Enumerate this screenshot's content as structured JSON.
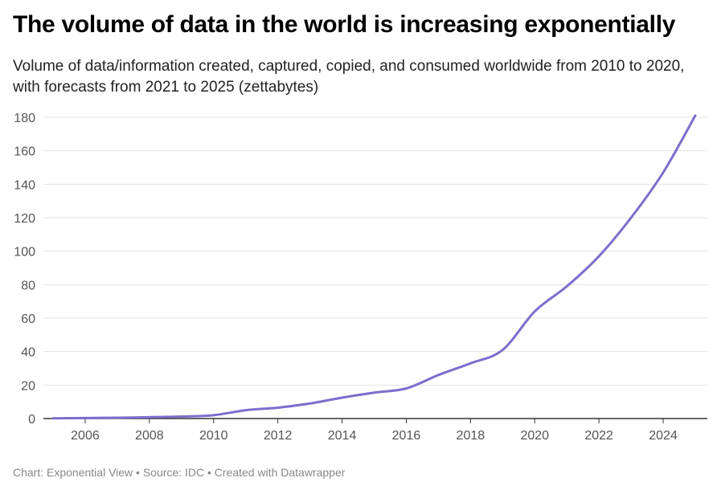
{
  "header": {
    "title": "The volume of data in the world is increasing exponentially",
    "subtitle": "Volume of data/information created, captured, copied, and consumed worldwide from 2010 to 2020, with forecasts from 2021 to 2025 (zettabytes)"
  },
  "footer": {
    "credit": "Chart: Exponential View • Source: IDC • Created with Datawrapper"
  },
  "colors": {
    "line": "#7b6fcd",
    "grid": "#e3e3e3",
    "axis": "#333333",
    "tick_text": "#555555"
  },
  "chart_data": {
    "type": "line",
    "title": "The volume of data in the world is increasing exponentially",
    "xlabel": "",
    "ylabel": "zettabytes",
    "xlim": [
      2005,
      2025
    ],
    "ylim": [
      0,
      180
    ],
    "grid": true,
    "x_ticks": [
      2006,
      2008,
      2010,
      2012,
      2014,
      2016,
      2018,
      2020,
      2022,
      2024
    ],
    "y_ticks": [
      0,
      20,
      40,
      60,
      80,
      100,
      120,
      140,
      160,
      180
    ],
    "series": [
      {
        "name": "Volume of data",
        "x": [
          2005,
          2006,
          2007,
          2008,
          2009,
          2010,
          2011,
          2012,
          2013,
          2014,
          2015,
          2016,
          2017,
          2018,
          2019,
          2020,
          2021,
          2022,
          2023,
          2024,
          2025
        ],
        "values": [
          0.1,
          0.3,
          0.5,
          0.8,
          1.2,
          2,
          5,
          6.5,
          9,
          12.5,
          15.5,
          18,
          26,
          33,
          41,
          64,
          79,
          97,
          120,
          147,
          181
        ]
      }
    ]
  }
}
